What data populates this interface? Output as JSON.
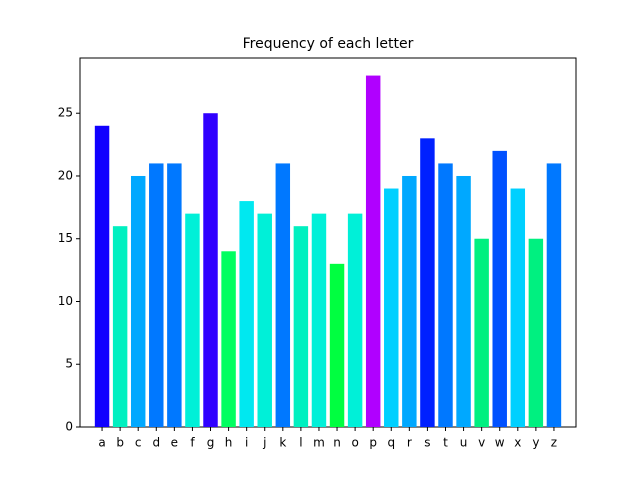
{
  "chart_data": {
    "type": "bar",
    "title": "Frequency of each letter",
    "categories": [
      "a",
      "b",
      "c",
      "d",
      "e",
      "f",
      "g",
      "h",
      "i",
      "j",
      "k",
      "l",
      "m",
      "n",
      "o",
      "p",
      "q",
      "r",
      "s",
      "t",
      "u",
      "v",
      "w",
      "x",
      "y",
      "z"
    ],
    "values": [
      24,
      16,
      20,
      21,
      21,
      17,
      25,
      14,
      18,
      17,
      21,
      16,
      17,
      13,
      17,
      28,
      19,
      20,
      23,
      21,
      20,
      15,
      22,
      19,
      15,
      21
    ],
    "colors": [
      "#1000ff",
      "#00f0c0",
      "#00a8ff",
      "#0078ff",
      "#0078ff",
      "#00f0d8",
      "#3000ff",
      "#00ff60",
      "#00e8f0",
      "#00f0d8",
      "#0078ff",
      "#00f0c0",
      "#00f0d8",
      "#00ff40",
      "#00f0d8",
      "#b000ff",
      "#00d0ff",
      "#00a8ff",
      "#0020ff",
      "#0078ff",
      "#00a8ff",
      "#00f080",
      "#0050ff",
      "#00d0ff",
      "#00f080",
      "#0078ff"
    ],
    "ylim": [
      0,
      29.4
    ],
    "yticks": [
      0,
      5,
      10,
      15,
      20,
      25
    ],
    "grid": false
  }
}
